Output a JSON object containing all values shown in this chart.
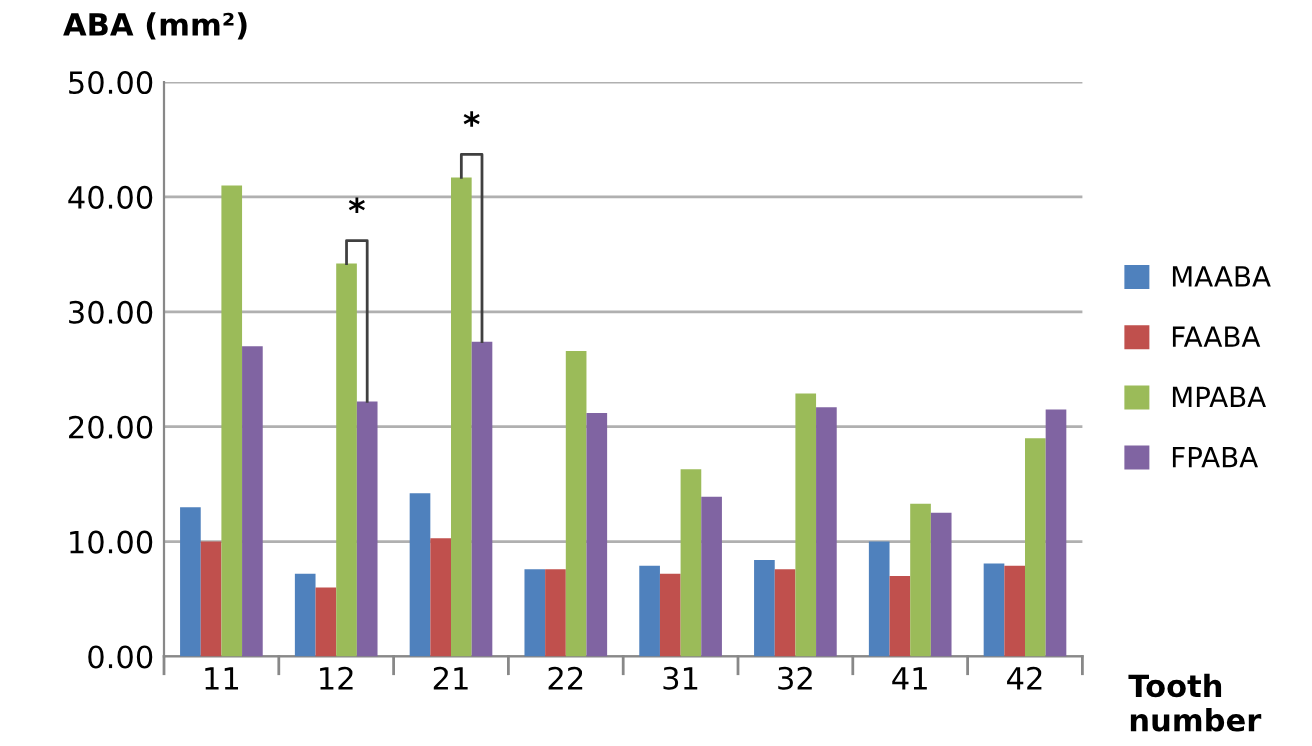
{
  "chart_data": {
    "type": "bar",
    "ylabel": "ABA (mm²)",
    "xlabel": "Tooth number",
    "categories": [
      "11",
      "12",
      "21",
      "22",
      "31",
      "32",
      "41",
      "42"
    ],
    "series": [
      {
        "name": "MAABA",
        "color": "#4f81bd",
        "values": [
          13.0,
          7.2,
          14.2,
          7.6,
          7.9,
          8.4,
          10.0,
          8.1
        ]
      },
      {
        "name": "FAABA",
        "color": "#c0504d",
        "values": [
          10.0,
          6.0,
          10.3,
          7.6,
          7.2,
          7.6,
          7.0,
          7.9
        ]
      },
      {
        "name": "MPABA",
        "color": "#9bbb59",
        "values": [
          41.0,
          34.2,
          41.7,
          26.6,
          16.3,
          22.9,
          13.3,
          19.0
        ]
      },
      {
        "name": "FPABA",
        "color": "#8064a2",
        "values": [
          27.0,
          22.2,
          27.4,
          21.2,
          13.9,
          21.7,
          12.5,
          21.5
        ]
      }
    ],
    "ylim": [
      0,
      50
    ],
    "yticks": [
      {
        "value": 0,
        "label": "0.00"
      },
      {
        "value": 10,
        "label": "10.00"
      },
      {
        "value": 20,
        "label": "20.00"
      },
      {
        "value": 30,
        "label": "30.00"
      },
      {
        "value": 40,
        "label": "40.00"
      },
      {
        "value": 50,
        "label": "50.00"
      }
    ],
    "grid": "y",
    "legend": "right",
    "annotations": [
      {
        "text": "*",
        "x": "12",
        "y": 34.2
      },
      {
        "text": "*",
        "x": "21",
        "y": 41.7
      }
    ]
  }
}
